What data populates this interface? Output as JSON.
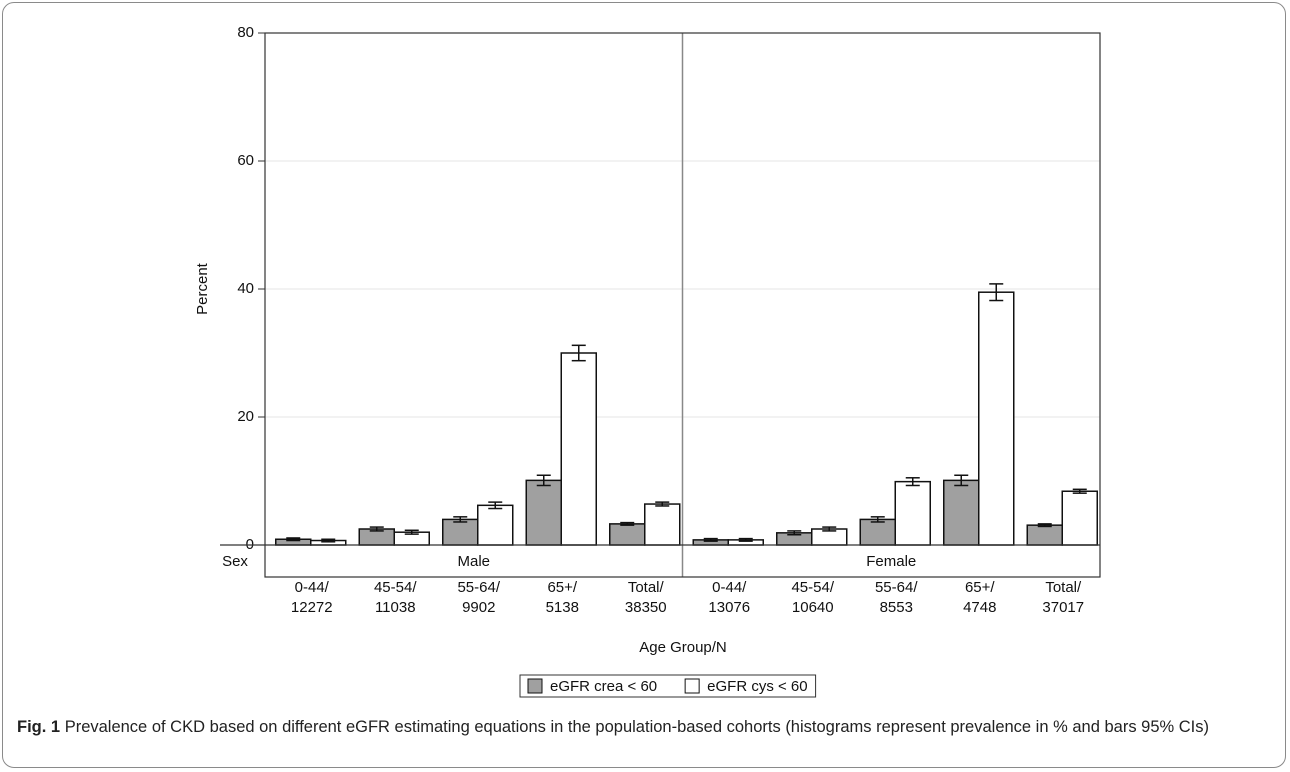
{
  "chart_data": {
    "type": "bar",
    "y_label": "Percent",
    "x_label": "Age Group/N",
    "facet_label": "Sex",
    "facets": [
      "Male",
      "Female"
    ],
    "categories": [
      [
        "0-44/",
        "12272"
      ],
      [
        "45-54/",
        "11038"
      ],
      [
        "55-64/",
        "9902"
      ],
      [
        "65+/",
        "5138"
      ],
      [
        "Total/",
        "38350"
      ],
      [
        "0-44/",
        "13076"
      ],
      [
        "45-54/",
        "10640"
      ],
      [
        "55-64/",
        "8553"
      ],
      [
        "65+/",
        "4748"
      ],
      [
        "Total/",
        "37017"
      ]
    ],
    "series": [
      {
        "name": "eGFR crea < 60",
        "color": "#a0a0a0",
        "values": [
          0.9,
          2.5,
          4.0,
          10.1,
          3.3,
          0.8,
          1.9,
          4.0,
          10.1,
          3.1
        ],
        "errors": [
          0.2,
          0.3,
          0.4,
          0.8,
          0.2,
          0.2,
          0.3,
          0.4,
          0.8,
          0.2
        ]
      },
      {
        "name": "eGFR cys < 60",
        "color": "#ffffff",
        "values": [
          0.7,
          2.0,
          6.2,
          30.0,
          6.4,
          0.8,
          2.5,
          9.9,
          39.5,
          8.4
        ],
        "errors": [
          0.2,
          0.3,
          0.5,
          1.2,
          0.3,
          0.2,
          0.3,
          0.6,
          1.3,
          0.3
        ]
      }
    ],
    "ylim": [
      0,
      80
    ],
    "yticks": [
      0,
      20,
      40,
      60,
      80
    ],
    "grid": true,
    "caption_label": "Fig. 1",
    "caption": "Prevalence of CKD based on different eGFR estimating equations in the population-based cohorts (histograms represent prevalence in % and bars 95% CIs)"
  }
}
